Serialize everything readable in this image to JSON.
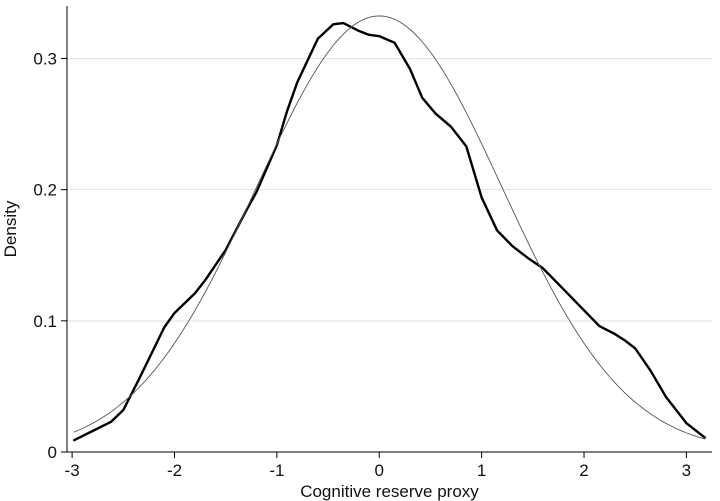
{
  "chart_data": {
    "type": "line",
    "title": "",
    "xlabel": "Cognitive reserve proxy",
    "ylabel": "Density",
    "xlim": [
      -3.05,
      3.25
    ],
    "ylim": [
      0,
      0.34
    ],
    "xticks": [
      -3,
      -2,
      -1,
      0,
      1,
      2,
      3
    ],
    "xtick_labels": [
      "-3",
      "-2",
      "-1",
      "0",
      "1",
      "2",
      "3"
    ],
    "yticks": [
      0,
      0.1,
      0.2,
      0.3
    ],
    "ytick_labels": [
      "0",
      "0.1",
      "0.2",
      "0.3"
    ],
    "grid": "horizontal",
    "legend": "none",
    "series": [
      {
        "style": "thick",
        "color": "#000000",
        "points": [
          [
            -2.98,
            0.009
          ],
          [
            -2.8,
            0.016
          ],
          [
            -2.62,
            0.023
          ],
          [
            -2.5,
            0.032
          ],
          [
            -2.35,
            0.055
          ],
          [
            -2.2,
            0.079
          ],
          [
            -2.1,
            0.095
          ],
          [
            -2.0,
            0.106
          ],
          [
            -1.8,
            0.121
          ],
          [
            -1.7,
            0.131
          ],
          [
            -1.5,
            0.154
          ],
          [
            -1.3,
            0.184
          ],
          [
            -1.2,
            0.198
          ],
          [
            -1.0,
            0.234
          ],
          [
            -0.9,
            0.26
          ],
          [
            -0.8,
            0.282
          ],
          [
            -0.6,
            0.315
          ],
          [
            -0.45,
            0.326
          ],
          [
            -0.35,
            0.327
          ],
          [
            -0.2,
            0.321
          ],
          [
            -0.1,
            0.318
          ],
          [
            0.0,
            0.317
          ],
          [
            0.15,
            0.312
          ],
          [
            0.3,
            0.292
          ],
          [
            0.42,
            0.27
          ],
          [
            0.55,
            0.258
          ],
          [
            0.7,
            0.248
          ],
          [
            0.85,
            0.233
          ],
          [
            1.0,
            0.194
          ],
          [
            1.15,
            0.169
          ],
          [
            1.3,
            0.157
          ],
          [
            1.45,
            0.148
          ],
          [
            1.6,
            0.14
          ],
          [
            1.8,
            0.124
          ],
          [
            2.0,
            0.108
          ],
          [
            2.15,
            0.096
          ],
          [
            2.3,
            0.09
          ],
          [
            2.4,
            0.085
          ],
          [
            2.5,
            0.079
          ],
          [
            2.65,
            0.062
          ],
          [
            2.8,
            0.042
          ],
          [
            3.0,
            0.022
          ],
          [
            3.18,
            0.011
          ]
        ]
      },
      {
        "style": "thin",
        "color": "#555555",
        "function": "normal",
        "mean": 0,
        "sd": 1.2,
        "x_range": [
          -2.98,
          3.18
        ]
      }
    ]
  }
}
